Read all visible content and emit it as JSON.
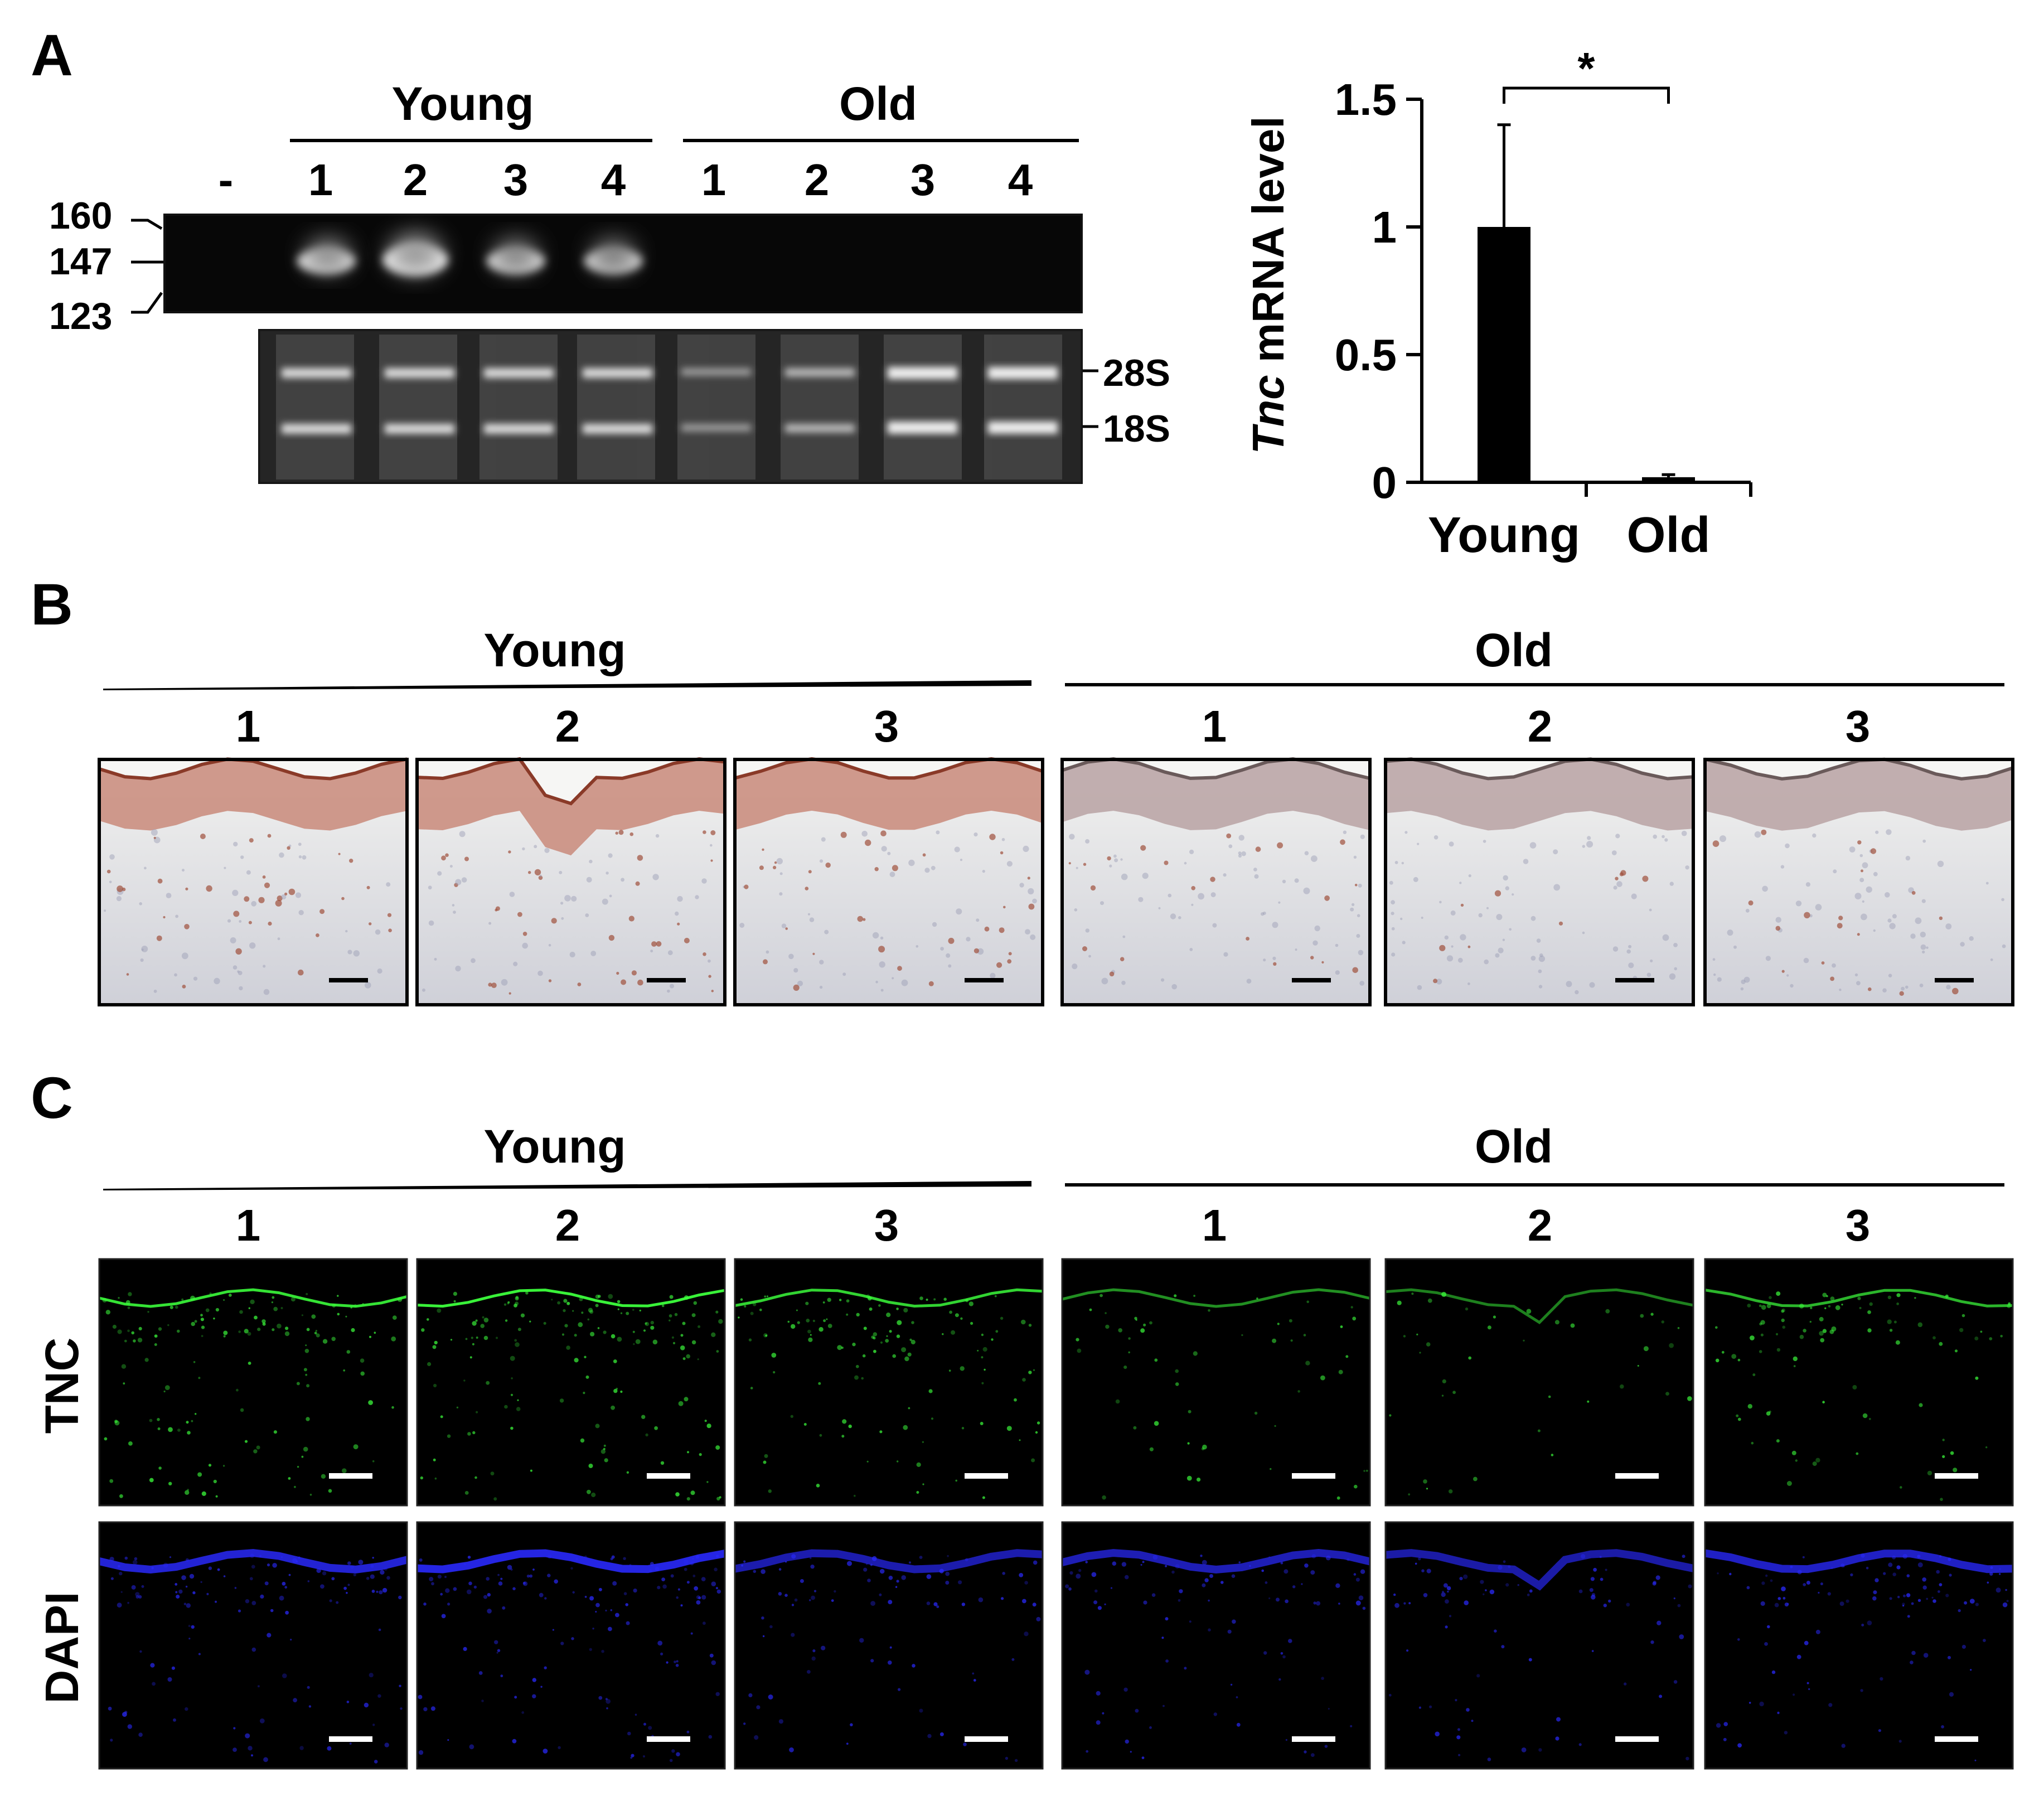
{
  "panels": {
    "A": {
      "letter": "A",
      "gel": {
        "groups": [
          "Young",
          "Old"
        ],
        "lanes": [
          "-",
          "1",
          "2",
          "3",
          "4",
          "1",
          "2",
          "3",
          "4"
        ],
        "markers": [
          "160",
          "147",
          "123"
        ],
        "rrna": [
          "28S",
          "18S"
        ]
      }
    },
    "B": {
      "letter": "B",
      "groups": [
        "Young",
        "Old"
      ],
      "samples": [
        "1",
        "2",
        "3"
      ]
    },
    "C": {
      "letter": "C",
      "groups": [
        "Young",
        "Old"
      ],
      "samples": [
        "1",
        "2",
        "3"
      ],
      "rows": [
        "TNC",
        "DAPI"
      ]
    }
  },
  "chart_data": {
    "type": "bar",
    "categories": [
      "Young",
      "Old"
    ],
    "values": [
      1.0,
      0.02
    ],
    "error": [
      0.4,
      0.01
    ],
    "ylabel_italic": "Tnc",
    "ylabel_rest": " mRNA level",
    "ylim": [
      0,
      1.5
    ],
    "yticks": [
      "0",
      "0.5",
      "1",
      "1.5"
    ],
    "significance": "*",
    "bar_color": "#000000"
  },
  "colors": {
    "gel_bg": "#050505",
    "rrna_bg": "#2a2a2a",
    "ihc_bg": "#dcdde3",
    "ihc_stain": "#a0503c",
    "tnc_green": "#3cff3c",
    "dapi_blue": "#2a2aff"
  }
}
